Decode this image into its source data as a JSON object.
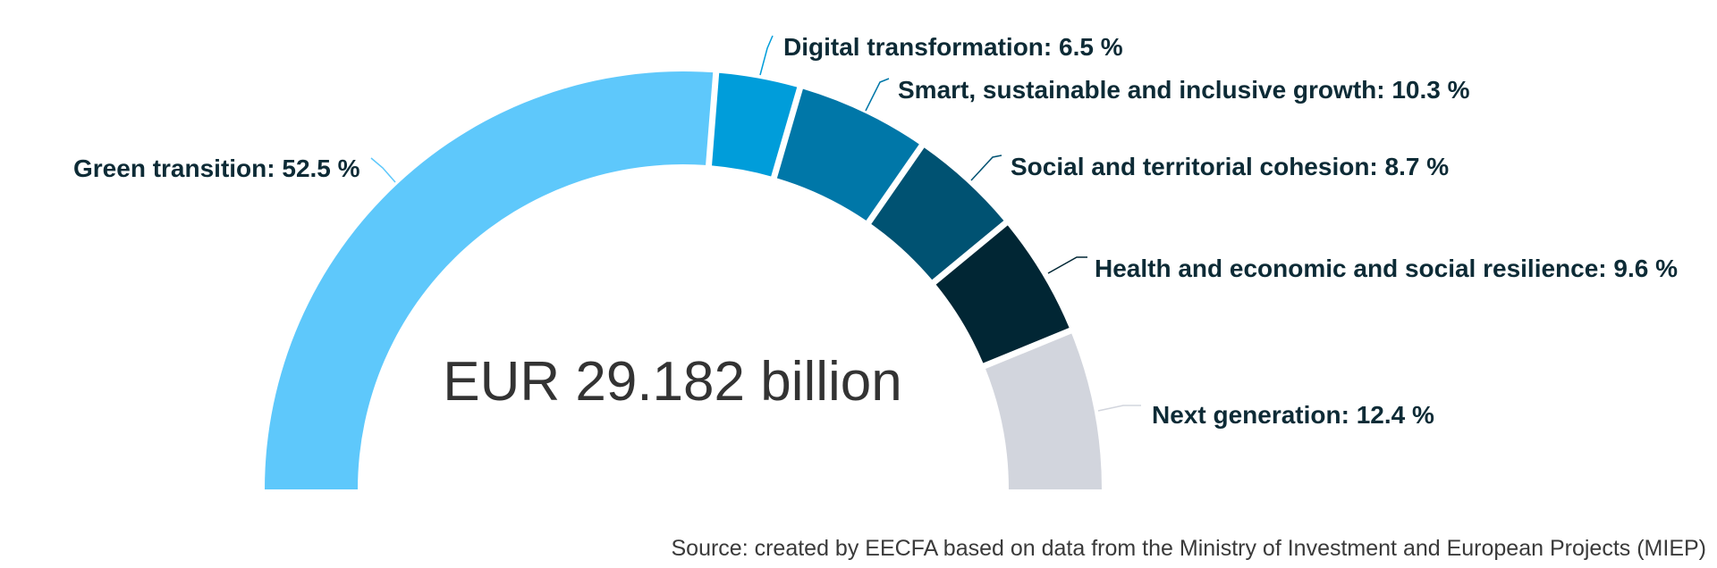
{
  "chart_data": {
    "type": "pie",
    "center_label": "EUR 29.182 billion",
    "slices": [
      {
        "label": "Green transition: 52.5 %",
        "value": 52.5,
        "color": "#5ec8fb"
      },
      {
        "label": "Digital transformation: 6.5 %",
        "value": 6.5,
        "color": "#009dda"
      },
      {
        "label": "Smart, sustainable and inclusive growth: 10.3 %",
        "value": 10.3,
        "color": "#0077a8"
      },
      {
        "label": "Social and territorial cohesion: 8.7 %",
        "value": 8.7,
        "color": "#005272"
      },
      {
        "label": "Health and economic and social resilience: 9.6 %",
        "value": 9.6,
        "color": "#012634"
      },
      {
        "label": "Next generation: 12.4 %",
        "value": 12.4,
        "color": "#d2d5dd"
      }
    ],
    "source": "Source: created by EECFA based on data from the Ministry of Investment and European Projects (MIEP)"
  }
}
